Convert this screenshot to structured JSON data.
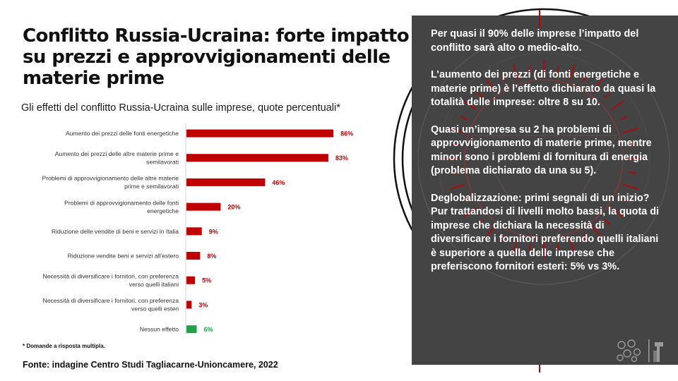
{
  "title": "Conflitto Russia-Ucraina: forte impatto su prezzi e approvvigionamenti delle materie prime",
  "subtitle": "Gli effetti del conflitto Russia-Ucraina sulle imprese, quote percentuali*",
  "footnote": "* Domande a risposta multipla.",
  "source": "Fonte: indagine Centro Studi Tagliacarne-Unioncamere, 2022",
  "colors": {
    "bar": "#c00000",
    "bar_highlight": "#21a249",
    "panel": "#444445",
    "decor": "#c00000"
  },
  "chart_data": {
    "type": "bar",
    "orientation": "horizontal",
    "title": "Gli effetti del conflitto Russia-Ucraina sulle imprese, quote percentuali*",
    "unit": "%",
    "xlim": [
      0,
      100
    ],
    "grid": false,
    "categories": [
      [
        "Aumento dei prezzi delle fonti energetiche"
      ],
      [
        "Aumento dei prezzi delle altre materie prime e",
        "semilavorati"
      ],
      [
        "Problemi di approvvigionamento delle altre materie",
        "prime e semilavorati"
      ],
      [
        "Problemi di approvvigionamento delle fonti",
        "energetiche"
      ],
      [
        "Riduzione delle vendite di beni e servizi in Italia"
      ],
      [
        "Riduzione vendite beni e servizi all'estero"
      ],
      [
        "Necessità di diversificare i fornitori, con preferenza",
        "verso quelli italiani"
      ],
      [
        "Necessità di diversificare i fornitori, con preferenza",
        "verso quelli esteri"
      ],
      [
        "Nessun effetto"
      ]
    ],
    "values": [
      86,
      83,
      46,
      20,
      9,
      8,
      5,
      3,
      6
    ],
    "value_labels": [
      "86%",
      "83%",
      "46%",
      "20%",
      "9%",
      "8%",
      "5%",
      "3%",
      "6%"
    ],
    "highlight_index": 8
  },
  "panel": {
    "paragraphs": [
      "Per  quasi il 90% delle imprese l’impatto del conflitto sarà alto o medio-alto.",
      "L’aumento dei prezzi (di fonti energetiche e materie prime) è l’effetto dichiarato da quasi la totalità delle imprese: oltre 8 su 10.",
      "Quasi un’impresa su 2 ha problemi di approvvigionamento di materie prime, mentre minori sono i problemi di fornitura di energia (problema dichiarato da una su 5).",
      "Deglobalizzazione: primi segnali di un inizio? Pur trattandosi di livelli molto bassi, la quota di imprese che dichiara la necessità di diversificare i fornitori preferendo quelli italiani è superiore a quella delle imprese che preferiscono fornitori esteri: 5% vs 3%."
    ],
    "logo_icons": [
      "network-logo-icon",
      "chamber-logo-icon"
    ]
  }
}
